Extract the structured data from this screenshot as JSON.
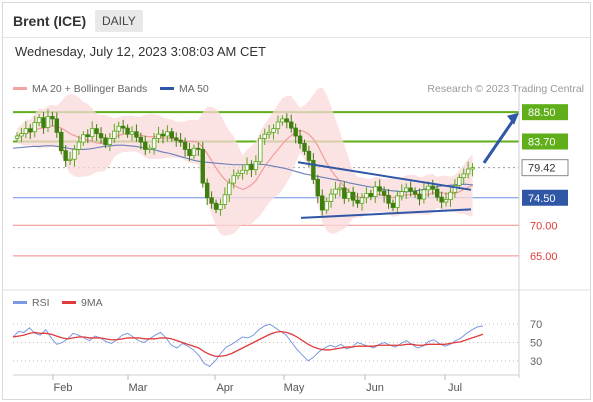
{
  "header": {
    "title": "Brent (ICE)",
    "period": "DAILY"
  },
  "timestamp": "Wednesday, July 12, 2023 3:08:03 AM CET",
  "legend": [
    {
      "label": "MA 20 + Bollinger Bands",
      "color": "#f4a3a3"
    },
    {
      "label": "MA 50",
      "color": "#2f57a6"
    }
  ],
  "credit": "Research © 2023 Trading Central",
  "rsi_legend": [
    {
      "label": "RSI",
      "color": "#7b98e0"
    },
    {
      "label": "9MA",
      "color": "#e03a3a"
    }
  ],
  "colors": {
    "green": "#5fae1a",
    "blue": "#2f57a6",
    "red": "#e03a3a",
    "band": "#fbd9d9",
    "candle_up": "#5fae1a",
    "candle_down": "#4a8f12"
  },
  "chart_data": [
    {
      "type": "candlestick",
      "title": "Brent (ICE)",
      "x_labels": [
        "Feb",
        "Mar",
        "Apr",
        "May",
        "Jun",
        "Jul"
      ],
      "y_ticks": [
        88.5,
        83.7,
        79.42,
        74.5,
        70.0,
        65.0
      ],
      "ylim": [
        63.5,
        90
      ],
      "levels": [
        {
          "value": 88.5,
          "label": "88.50",
          "style": "resistance-green"
        },
        {
          "value": 83.7,
          "label": "83.70",
          "style": "resistance-green"
        },
        {
          "value": 79.42,
          "label": "79.42",
          "style": "last-price"
        },
        {
          "value": 74.5,
          "label": "74.50",
          "style": "pivot-blue"
        },
        {
          "value": 70.0,
          "label": "70.00",
          "style": "support-red"
        },
        {
          "value": 65.0,
          "label": "65.00",
          "style": "support-red"
        }
      ],
      "closes": [
        84.6,
        85.0,
        85.8,
        85.3,
        86.8,
        87.6,
        86.0,
        87.8,
        87.4,
        85.2,
        82.2,
        80.6,
        80.8,
        82.4,
        83.6,
        84.8,
        84.5,
        85.8,
        85.0,
        84.3,
        83.2,
        84.2,
        85.4,
        86.2,
        85.9,
        84.9,
        85.3,
        84.4,
        83.6,
        82.4,
        82.6,
        84.2,
        84.9,
        84.6,
        85.3,
        84.3,
        83.9,
        83.6,
        82.4,
        81.4,
        82.6,
        82.4,
        76.9,
        74.5,
        73.6,
        72.6,
        73.4,
        75.0,
        76.9,
        78.1,
        78.5,
        79.0,
        79.9,
        79.1,
        80.4,
        84.2,
        84.9,
        85.2,
        85.8,
        86.9,
        87.4,
        86.9,
        85.9,
        84.6,
        83.4,
        82.1,
        80.6,
        77.5,
        74.8,
        72.5,
        73.9,
        75.1,
        75.9,
        76.1,
        74.4,
        75.4,
        74.1,
        73.6,
        74.5,
        75.2,
        74.7,
        76.3,
        75.6,
        74.9,
        73.6,
        72.9,
        74.8,
        75.5,
        76.1,
        75.6,
        75.1,
        74.3,
        75.8,
        76.4,
        75.9,
        74.6,
        73.8,
        74.2,
        75.4,
        76.5,
        77.8,
        78.4,
        79.2,
        79.42
      ],
      "ma50": [
        82.6,
        82.7,
        82.8,
        82.9,
        82.9,
        83.0,
        83.0,
        82.9,
        82.7,
        82.5,
        82.4,
        82.4,
        82.5,
        82.7,
        82.9,
        83.0,
        83.1,
        83.1,
        83.0,
        82.9,
        82.7,
        82.5,
        82.3,
        82.0,
        81.8,
        81.5,
        81.2,
        80.9,
        80.6,
        80.4,
        80.3,
        80.2,
        80.1,
        80.0,
        79.9,
        79.9,
        79.9,
        80.0,
        80.0,
        79.9,
        79.7,
        79.5,
        79.3,
        79.0,
        78.7,
        78.4,
        78.2,
        78.0,
        77.8,
        77.6,
        77.4,
        77.2,
        76.9,
        76.7,
        76.5,
        76.3,
        76.1,
        75.9,
        75.7,
        75.6,
        75.5,
        75.5,
        75.6,
        75.8,
        76.0,
        76.2,
        76.4,
        76.5,
        76.6,
        76.7,
        76.7,
        76.6
      ]
    },
    {
      "type": "line",
      "title": "RSI",
      "y_ticks": [
        70,
        50,
        30
      ],
      "ylim": [
        20,
        80
      ],
      "series": [
        {
          "name": "RSI",
          "values": [
            56,
            62,
            61,
            66,
            60,
            58,
            64,
            55,
            48,
            50,
            54,
            60,
            58,
            55,
            52,
            57,
            55,
            51,
            49,
            53,
            58,
            60,
            56,
            52,
            50,
            54,
            58,
            61,
            55,
            47,
            44,
            49,
            46,
            42,
            36,
            27,
            24,
            30,
            38,
            45,
            48,
            52,
            56,
            55,
            58,
            64,
            68,
            70,
            66,
            62,
            58,
            50,
            42,
            36,
            30,
            34,
            40,
            44,
            47,
            45,
            48,
            43,
            45,
            50,
            48,
            46,
            44,
            48,
            50,
            47,
            45,
            49,
            52,
            48,
            44,
            46,
            51,
            53,
            49,
            46,
            48,
            52,
            55,
            60,
            64,
            67,
            68
          ]
        },
        {
          "name": "9MA",
          "values": [
            56,
            57,
            58,
            60,
            61,
            60,
            60,
            59,
            57,
            55,
            54,
            55,
            56,
            56,
            55,
            55,
            55,
            54,
            53,
            53,
            54,
            55,
            55,
            55,
            54,
            54,
            54,
            55,
            55,
            54,
            52,
            50,
            48,
            46,
            44,
            40,
            37,
            35,
            35,
            36,
            38,
            41,
            44,
            47,
            50,
            53,
            56,
            59,
            61,
            62,
            61,
            59,
            56,
            52,
            48,
            45,
            43,
            42,
            42,
            43,
            44,
            45,
            45,
            46,
            46,
            46,
            46,
            47,
            47,
            47,
            47,
            47,
            48,
            48,
            47,
            47,
            48,
            48,
            48,
            48,
            49,
            50,
            51,
            53,
            55,
            57,
            59
          ]
        }
      ]
    }
  ]
}
